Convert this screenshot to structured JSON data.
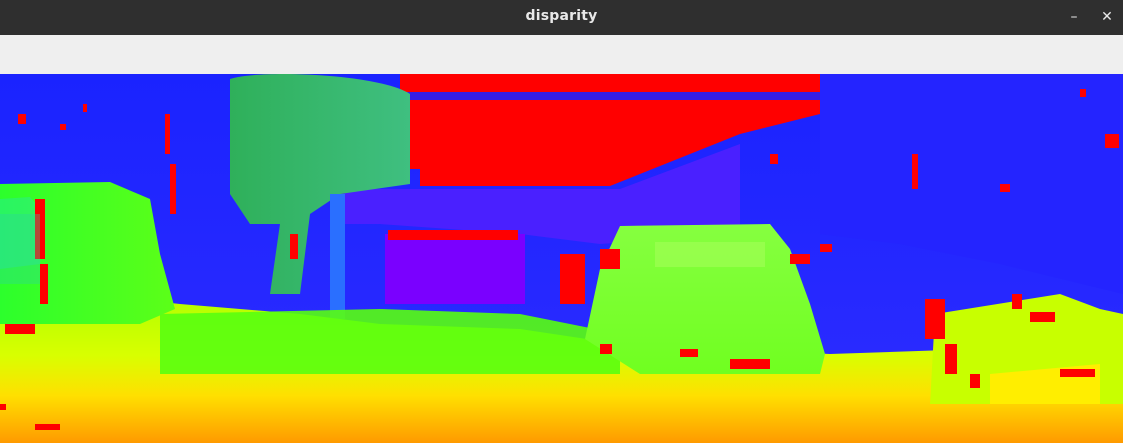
{
  "window": {
    "title": "disparity",
    "controls": {
      "minimize_icon": "minimize-icon",
      "close_icon": "close-icon"
    }
  },
  "image": {
    "description_colors": {
      "far": "#2020ff",
      "mid": "#7a00ff",
      "near": "#22ff22",
      "closer": "#aaff00",
      "closest": "#ffe000",
      "front": "#ff9a00",
      "invalid": "#ff0000",
      "teal": "#32b46e"
    }
  }
}
